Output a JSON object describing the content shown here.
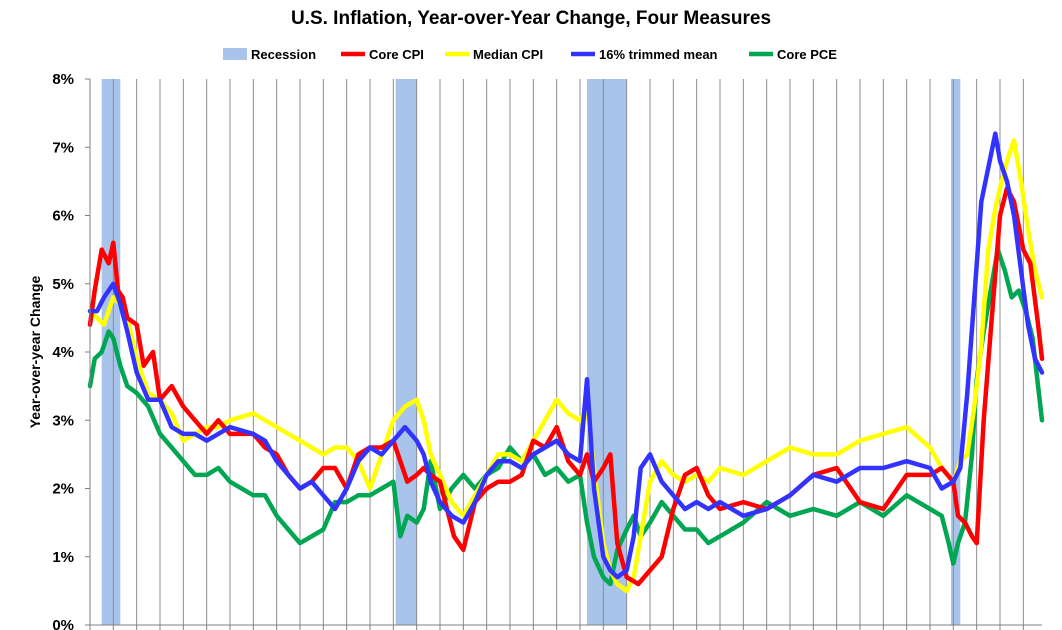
{
  "chart_data": {
    "type": "line",
    "title": "U.S. Inflation, Year-over-Year Change, Four Measures",
    "xlabel": "",
    "ylabel": "Year-over-year Change",
    "ylim": [
      0,
      8
    ],
    "y_ticks": [
      "0%",
      "1%",
      "2%",
      "3%",
      "4%",
      "5%",
      "6%",
      "7%",
      "8%"
    ],
    "xlim": [
      1983,
      2023.8
    ],
    "grid": "vertical lines at each year",
    "legend_position": "top",
    "recessions": [
      [
        1983.5,
        1984.3
      ],
      [
        1996.1,
        1997.0
      ],
      [
        2004.3,
        2006.0
      ],
      [
        2019.9,
        2020.3
      ]
    ],
    "series": [
      {
        "name": "Recession",
        "color": "#a9c4eb",
        "kind": "band"
      },
      {
        "name": "Core CPI",
        "color": "#ff0000",
        "x": [
          1983.0,
          1983.2,
          1983.5,
          1983.8,
          1984.0,
          1984.2,
          1984.4,
          1984.6,
          1985.0,
          1985.3,
          1985.7,
          1986.0,
          1986.5,
          1987.0,
          1987.5,
          1988.0,
          1988.5,
          1989.0,
          1990.0,
          1990.5,
          1991.0,
          1991.5,
          1992.0,
          1992.5,
          1993.0,
          1993.5,
          1994.0,
          1994.5,
          1995.0,
          1995.5,
          1996.0,
          1996.3,
          1996.6,
          1997.0,
          1997.3,
          1997.6,
          1998.0,
          1998.3,
          1998.6,
          1999.0,
          1999.5,
          2000.0,
          2000.5,
          2001.0,
          2001.5,
          2002.0,
          2002.5,
          2003.0,
          2003.5,
          2004.0,
          2004.3,
          2004.6,
          2005.0,
          2005.3,
          2005.6,
          2006.0,
          2006.5,
          2007.0,
          2007.5,
          2008.0,
          2008.5,
          2009.0,
          2009.5,
          2010.0,
          2011.0,
          2012.0,
          2013.0,
          2014.0,
          2015.0,
          2016.0,
          2017.0,
          2018.0,
          2019.0,
          2019.5,
          2020.0,
          2020.2,
          2020.5,
          2020.8,
          2021.0,
          2021.3,
          2021.6,
          2022.0,
          2022.3,
          2022.6,
          2023.0,
          2023.3,
          2023.6,
          2023.8
        ],
        "y": [
          4.4,
          4.9,
          5.5,
          5.3,
          5.6,
          4.9,
          4.8,
          4.5,
          4.4,
          3.8,
          4.0,
          3.3,
          3.5,
          3.2,
          3.0,
          2.8,
          3.0,
          2.8,
          2.8,
          2.6,
          2.5,
          2.2,
          2.0,
          2.1,
          2.3,
          2.3,
          2.0,
          2.5,
          2.6,
          2.6,
          2.7,
          2.4,
          2.1,
          2.2,
          2.3,
          2.2,
          2.1,
          1.7,
          1.3,
          1.1,
          1.8,
          2.0,
          2.1,
          2.1,
          2.2,
          2.7,
          2.6,
          2.9,
          2.4,
          2.2,
          2.5,
          2.1,
          2.3,
          2.5,
          1.2,
          0.7,
          0.6,
          0.8,
          1.0,
          1.7,
          2.2,
          2.3,
          1.9,
          1.7,
          1.8,
          1.7,
          1.9,
          2.2,
          2.3,
          1.8,
          1.7,
          2.2,
          2.2,
          2.3,
          2.1,
          1.6,
          1.5,
          1.3,
          1.2,
          3.0,
          4.3,
          6.0,
          6.4,
          6.2,
          5.5,
          5.3,
          4.5,
          3.9
        ]
      },
      {
        "name": "Median CPI",
        "color": "#ffff00",
        "x": [
          1983.0,
          1983.3,
          1983.6,
          1984.0,
          1984.3,
          1984.6,
          1985.0,
          1985.5,
          1986.0,
          1986.5,
          1987.0,
          1987.5,
          1988.0,
          1988.5,
          1989.0,
          1990.0,
          1990.5,
          1991.0,
          1991.5,
          1992.0,
          1992.5,
          1993.0,
          1993.5,
          1994.0,
          1994.5,
          1995.0,
          1995.5,
          1996.0,
          1996.5,
          1997.0,
          1997.3,
          1997.6,
          1998.0,
          1998.5,
          1999.0,
          1999.5,
          2000.0,
          2000.5,
          2001.0,
          2001.5,
          2002.0,
          2002.5,
          2003.0,
          2003.5,
          2004.0,
          2004.3,
          2004.6,
          2005.0,
          2005.3,
          2005.6,
          2006.0,
          2006.3,
          2006.6,
          2007.0,
          2007.5,
          2008.0,
          2008.5,
          2009.0,
          2009.5,
          2010.0,
          2011.0,
          2012.0,
          2013.0,
          2014.0,
          2015.0,
          2016.0,
          2017.0,
          2018.0,
          2019.0,
          2019.5,
          2020.0,
          2020.3,
          2020.6,
          2020.9,
          2021.2,
          2021.5,
          2021.8,
          2022.0,
          2022.3,
          2022.6,
          2022.9,
          2023.2,
          2023.5,
          2023.8
        ],
        "y": [
          4.6,
          4.5,
          4.4,
          4.8,
          4.7,
          4.5,
          3.9,
          3.4,
          3.3,
          3.1,
          2.7,
          2.8,
          2.9,
          2.9,
          3.0,
          3.1,
          3.0,
          2.9,
          2.8,
          2.7,
          2.6,
          2.5,
          2.6,
          2.6,
          2.4,
          2.0,
          2.5,
          3.0,
          3.2,
          3.3,
          3.0,
          2.5,
          2.2,
          1.8,
          1.6,
          1.9,
          2.2,
          2.5,
          2.5,
          2.4,
          2.7,
          3.0,
          3.3,
          3.1,
          3.0,
          3.2,
          2.3,
          1.2,
          0.8,
          0.6,
          0.5,
          0.7,
          1.3,
          2.1,
          2.4,
          2.2,
          2.1,
          2.2,
          2.1,
          2.3,
          2.2,
          2.4,
          2.6,
          2.5,
          2.5,
          2.7,
          2.8,
          2.9,
          2.6,
          2.3,
          2.1,
          2.4,
          2.5,
          3.2,
          4.1,
          5.5,
          6.1,
          6.4,
          6.8,
          7.1,
          6.5,
          5.8,
          5.2,
          4.8
        ]
      },
      {
        "name": "16% trimmed mean",
        "color": "#3333ff",
        "x": [
          1983.0,
          1983.3,
          1983.6,
          1984.0,
          1984.3,
          1984.6,
          1985.0,
          1985.5,
          1986.0,
          1986.5,
          1987.0,
          1987.5,
          1988.0,
          1988.5,
          1989.0,
          1990.0,
          1990.5,
          1991.0,
          1991.5,
          1992.0,
          1992.5,
          1993.0,
          1993.5,
          1994.0,
          1994.5,
          1995.0,
          1995.5,
          1996.0,
          1996.5,
          1997.0,
          1997.3,
          1997.6,
          1998.0,
          1998.5,
          1999.0,
          1999.5,
          2000.0,
          2000.5,
          2001.0,
          2001.5,
          2002.0,
          2002.5,
          2003.0,
          2003.5,
          2004.0,
          2004.3,
          2004.6,
          2005.0,
          2005.3,
          2005.6,
          2006.0,
          2006.3,
          2006.6,
          2007.0,
          2007.5,
          2008.0,
          2008.5,
          2009.0,
          2009.5,
          2010.0,
          2011.0,
          2012.0,
          2013.0,
          2014.0,
          2015.0,
          2016.0,
          2017.0,
          2018.0,
          2019.0,
          2019.5,
          2020.0,
          2020.3,
          2020.6,
          2020.9,
          2021.2,
          2021.5,
          2021.8,
          2022.0,
          2022.3,
          2022.6,
          2022.9,
          2023.2,
          2023.5,
          2023.8
        ],
        "y": [
          4.6,
          4.6,
          4.8,
          5.0,
          4.7,
          4.3,
          3.7,
          3.3,
          3.3,
          2.9,
          2.8,
          2.8,
          2.7,
          2.8,
          2.9,
          2.8,
          2.7,
          2.4,
          2.2,
          2.0,
          2.1,
          1.9,
          1.7,
          2.0,
          2.4,
          2.6,
          2.5,
          2.7,
          2.9,
          2.7,
          2.5,
          2.1,
          1.8,
          1.6,
          1.5,
          1.8,
          2.2,
          2.4,
          2.4,
          2.3,
          2.5,
          2.6,
          2.7,
          2.5,
          2.4,
          3.6,
          2.0,
          1.0,
          0.8,
          0.7,
          0.8,
          1.3,
          2.3,
          2.5,
          2.1,
          1.9,
          1.7,
          1.8,
          1.7,
          1.8,
          1.6,
          1.7,
          1.9,
          2.2,
          2.1,
          2.3,
          2.3,
          2.4,
          2.3,
          2.0,
          2.1,
          2.3,
          3.4,
          4.8,
          6.2,
          6.7,
          7.2,
          6.8,
          6.5,
          6.0,
          5.2,
          4.4,
          3.9,
          3.7
        ]
      },
      {
        "name": "Core PCE",
        "color": "#00a651",
        "x": [
          1983.0,
          1983.2,
          1983.5,
          1983.8,
          1984.0,
          1984.3,
          1984.6,
          1985.0,
          1985.5,
          1986.0,
          1986.5,
          1987.0,
          1987.5,
          1988.0,
          1988.5,
          1989.0,
          1990.0,
          1990.5,
          1991.0,
          1991.5,
          1992.0,
          1992.5,
          1993.0,
          1993.5,
          1994.0,
          1994.5,
          1995.0,
          1995.5,
          1996.0,
          1996.3,
          1996.6,
          1997.0,
          1997.3,
          1997.6,
          1998.0,
          1998.5,
          1999.0,
          1999.5,
          2000.0,
          2000.5,
          2001.0,
          2001.5,
          2002.0,
          2002.5,
          2003.0,
          2003.5,
          2004.0,
          2004.3,
          2004.6,
          2005.0,
          2005.3,
          2005.6,
          2006.0,
          2006.3,
          2006.6,
          2007.0,
          2007.5,
          2008.0,
          2008.5,
          2009.0,
          2009.5,
          2010.0,
          2011.0,
          2012.0,
          2013.0,
          2014.0,
          2015.0,
          2016.0,
          2017.0,
          2018.0,
          2019.0,
          2019.5,
          2019.8,
          2020.0,
          2020.2,
          2020.5,
          2020.8,
          2021.0,
          2021.3,
          2021.6,
          2021.9,
          2022.2,
          2022.5,
          2022.8,
          2023.1,
          2023.4,
          2023.6,
          2023.8
        ],
        "y": [
          3.5,
          3.9,
          4.0,
          4.3,
          4.2,
          3.8,
          3.5,
          3.4,
          3.2,
          2.8,
          2.6,
          2.4,
          2.2,
          2.2,
          2.3,
          2.1,
          1.9,
          1.9,
          1.6,
          1.4,
          1.2,
          1.3,
          1.4,
          1.8,
          1.8,
          1.9,
          1.9,
          2.0,
          2.1,
          1.3,
          1.6,
          1.5,
          1.7,
          2.4,
          1.7,
          2.0,
          2.2,
          2.0,
          2.2,
          2.3,
          2.6,
          2.4,
          2.5,
          2.2,
          2.3,
          2.1,
          2.2,
          1.5,
          1.0,
          0.7,
          0.6,
          1.1,
          1.4,
          1.6,
          1.3,
          1.5,
          1.8,
          1.6,
          1.4,
          1.4,
          1.2,
          1.3,
          1.5,
          1.8,
          1.6,
          1.7,
          1.6,
          1.8,
          1.6,
          1.9,
          1.7,
          1.6,
          1.2,
          0.9,
          1.2,
          1.5,
          2.5,
          3.6,
          4.3,
          4.9,
          5.5,
          5.2,
          4.8,
          4.9,
          4.6,
          4.2,
          3.6,
          3.0
        ]
      }
    ]
  }
}
